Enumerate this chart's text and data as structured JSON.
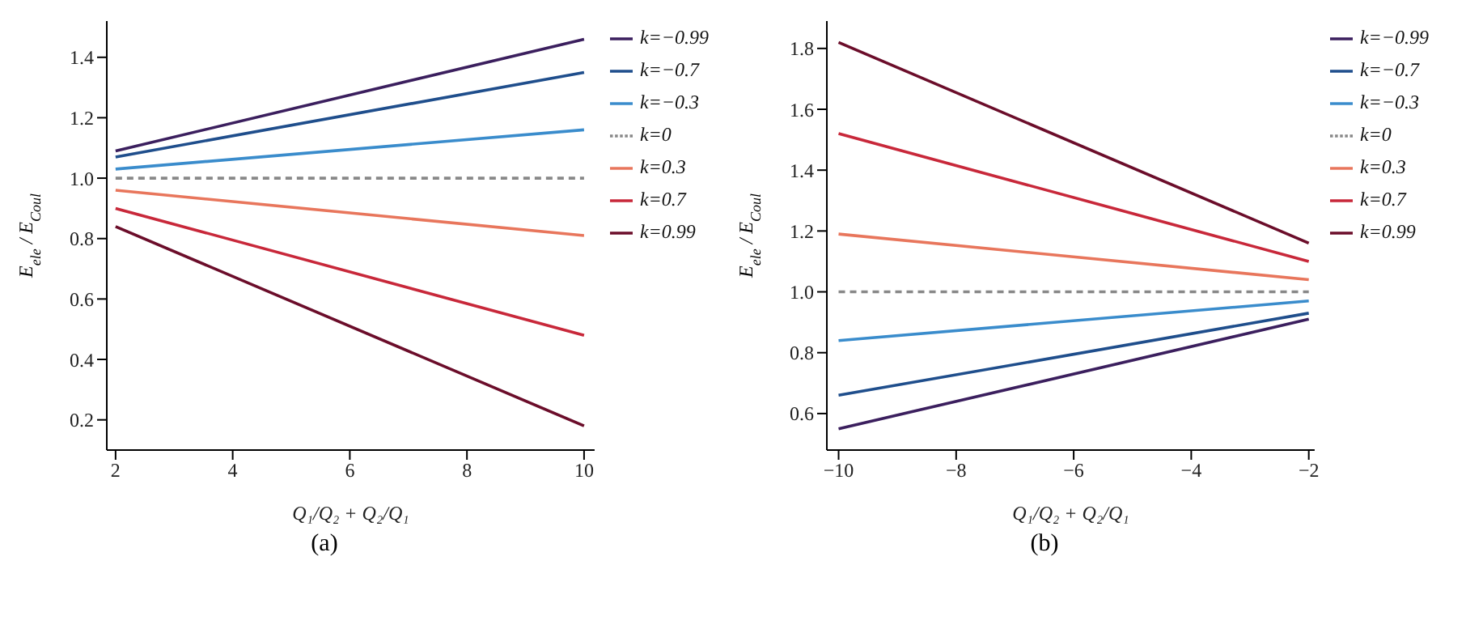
{
  "chart_data": [
    {
      "type": "line",
      "x": [
        2,
        10
      ],
      "xlabel": "Q₁/Q₂ + Q₂/Q₁",
      "ylabel": "E$_{ele}$ / E$_{Coul}$",
      "xlim": [
        1.85,
        10.18
      ],
      "xticks": [
        2,
        4,
        6,
        8,
        10
      ],
      "ylim": [
        0.1,
        1.52
      ],
      "yticks": [
        0.2,
        0.4,
        0.6,
        0.8,
        {
          "value": 1,
          "label": "1.0"
        },
        1.2,
        1.4
      ],
      "grid": false,
      "legend": "top right",
      "marker": "none",
      "annotations": [
        "(a)"
      ],
      "series": [
        {
          "name": "k=−0.99",
          "color": "#3b1f5e",
          "values": [
            1.09,
            1.46
          ]
        },
        {
          "name": "k=−0.7",
          "color": "#1f4e8c",
          "values": [
            1.07,
            1.35
          ]
        },
        {
          "name": "k=−0.3",
          "color": "#3a8ccc",
          "values": [
            1.03,
            1.16
          ]
        },
        {
          "name": "k=0",
          "color": "#888888",
          "line_style": "dashed",
          "values": [
            1.0,
            1.0
          ]
        },
        {
          "name": "k=0.3",
          "color": "#e8765c",
          "values": [
            0.96,
            0.81
          ]
        },
        {
          "name": "k=0.7",
          "color": "#c8283a",
          "values": [
            0.9,
            0.48
          ]
        },
        {
          "name": "k=0.99",
          "color": "#6b0d2a",
          "values": [
            0.84,
            0.18
          ]
        }
      ]
    },
    {
      "type": "line",
      "x": [
        -10,
        -2
      ],
      "xlabel": "Q₁/Q₂ + Q₂/Q₁",
      "ylabel": "E$_{ele}$ / E$_{Coul}$",
      "xlim": [
        -10.2,
        -1.9
      ],
      "xticks": [
        {
          "value": -10,
          "label": "−10"
        },
        {
          "value": -8,
          "label": "−8"
        },
        {
          "value": -6,
          "label": "−6"
        },
        {
          "value": -4,
          "label": "−4"
        },
        {
          "value": -2,
          "label": "−2"
        }
      ],
      "ylim": [
        0.48,
        1.89
      ],
      "yticks": [
        0.6,
        0.8,
        {
          "value": 1,
          "label": "1.0"
        },
        1.2,
        1.4,
        1.6,
        1.8
      ],
      "grid": false,
      "legend": "top right",
      "marker": "none",
      "annotations": [
        "(b)"
      ],
      "series": [
        {
          "name": "k=−0.99",
          "color": "#3b1f5e",
          "values": [
            0.55,
            0.91
          ]
        },
        {
          "name": "k=−0.7",
          "color": "#1f4e8c",
          "values": [
            0.66,
            0.93
          ]
        },
        {
          "name": "k=−0.3",
          "color": "#3a8ccc",
          "values": [
            0.84,
            0.97
          ]
        },
        {
          "name": "k=0",
          "color": "#888888",
          "line_style": "dashed",
          "values": [
            1.0,
            1.0
          ]
        },
        {
          "name": "k=0.3",
          "color": "#e8765c",
          "values": [
            1.19,
            1.04
          ]
        },
        {
          "name": "k=0.7",
          "color": "#c8283a",
          "values": [
            1.52,
            1.1
          ]
        },
        {
          "name": "k=0.99",
          "color": "#6b0d2a",
          "values": [
            1.82,
            1.16
          ]
        }
      ]
    }
  ]
}
